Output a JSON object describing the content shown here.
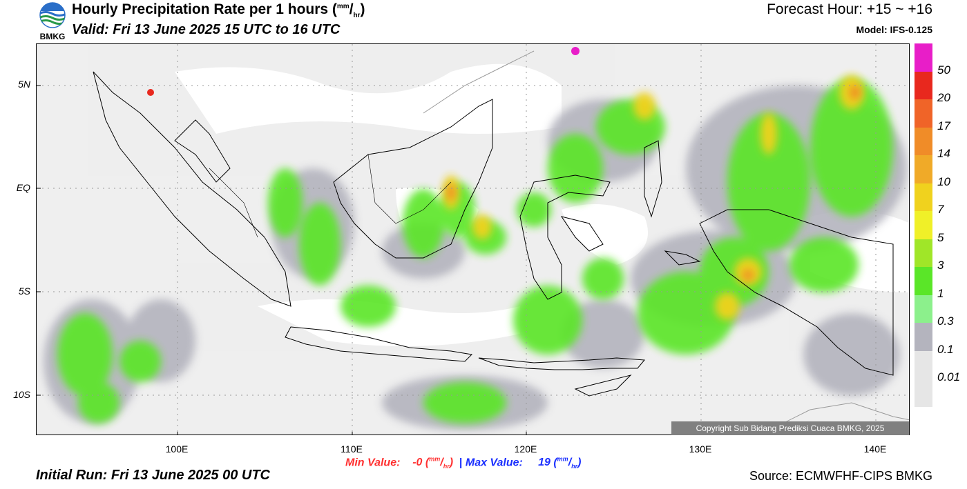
{
  "header": {
    "title_main": "Hourly Precipitation Rate per 1 hours (",
    "unit_num": "mm",
    "unit_sep": "/",
    "unit_den": "hr",
    "title_close": ")",
    "valid": "Valid: Fri 13 June 2025 15 UTC to 16 UTC",
    "forecast_hour": "Forecast Hour: +15 ~ +16",
    "model": "Model: IFS-0.125",
    "logo_text": "BMKG"
  },
  "map": {
    "lat_labels": [
      "5N",
      "EQ",
      "5S",
      "10S"
    ],
    "lon_labels": [
      "100E",
      "110E",
      "120E",
      "130E",
      "140E"
    ],
    "copyright": "Copyright Sub Bidang Prediksi Cuaca BMKG, 2025"
  },
  "stats": {
    "min_label": "Min Value:",
    "min_value": "-0",
    "max_label": "Max Value:",
    "max_value": "19",
    "unit_num": "mm",
    "unit_den": "hr",
    "separator": "|"
  },
  "footer": {
    "initial_run": "Initial Run: Fri 13 June 2025 00 UTC",
    "source": "Source: ECMWFHF-CIPS BMKG"
  },
  "legend": {
    "labels": [
      "50",
      "20",
      "17",
      "14",
      "10",
      "7",
      "5",
      "3",
      "1",
      "0.3",
      "0.1",
      "0.01"
    ],
    "colors": [
      "#e81ec8",
      "#e8281e",
      "#f06428",
      "#f08c28",
      "#f0aa28",
      "#f0d21e",
      "#f0f028",
      "#a0e628",
      "#5ae628",
      "#8cf08c",
      "#b4b4be",
      "#e6e6e6",
      "#e6e6e6"
    ]
  }
}
